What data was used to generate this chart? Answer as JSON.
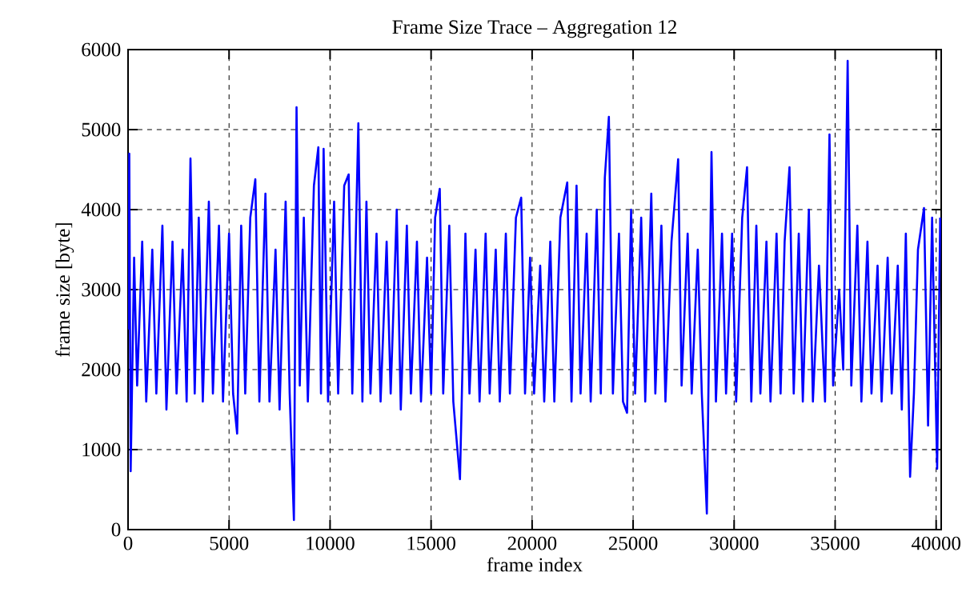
{
  "chart_data": {
    "type": "line",
    "title": "Frame Size Trace – Aggregation 12",
    "xlabel": "frame index",
    "ylabel": "frame size [byte]",
    "xlim": [
      0,
      40250
    ],
    "ylim": [
      0,
      6000
    ],
    "xticks": [
      0,
      5000,
      10000,
      15000,
      20000,
      25000,
      30000,
      35000,
      40000
    ],
    "yticks": [
      0,
      1000,
      2000,
      3000,
      4000,
      5000,
      6000
    ],
    "grid": true,
    "series": [
      {
        "color": "#0000ff",
        "x": [
          0,
          60,
          130,
          300,
          450,
          700,
          900,
          1200,
          1400,
          1700,
          1900,
          2200,
          2400,
          2700,
          2900,
          3090,
          3300,
          3500,
          3700,
          4000,
          4200,
          4500,
          4700,
          5000,
          5200,
          5400,
          5600,
          5800,
          6050,
          6300,
          6500,
          6800,
          7000,
          7300,
          7500,
          7800,
          8000,
          8210,
          8340,
          8500,
          8700,
          8900,
          9200,
          9420,
          9550,
          9680,
          9900,
          10200,
          10400,
          10700,
          10920,
          11100,
          11400,
          11600,
          11800,
          12000,
          12300,
          12500,
          12800,
          13000,
          13300,
          13500,
          13800,
          14000,
          14300,
          14500,
          14800,
          15000,
          15200,
          15430,
          15600,
          15900,
          16100,
          16430,
          16700,
          16900,
          17200,
          17400,
          17700,
          17900,
          18200,
          18400,
          18700,
          18900,
          19200,
          19460,
          19650,
          19900,
          20100,
          20400,
          20600,
          20900,
          21100,
          21400,
          21740,
          21950,
          22200,
          22400,
          22700,
          22900,
          23200,
          23400,
          23600,
          23800,
          24000,
          24300,
          24500,
          24700,
          24900,
          25100,
          25400,
          25600,
          25900,
          26100,
          26400,
          26600,
          26900,
          27230,
          27400,
          27700,
          27900,
          28200,
          28400,
          28650,
          28880,
          29100,
          29400,
          29600,
          29900,
          30100,
          30400,
          30640,
          30850,
          31100,
          31300,
          31600,
          31800,
          32100,
          32300,
          32500,
          32740,
          32950,
          33200,
          33400,
          33700,
          33900,
          34200,
          34500,
          34720,
          34900,
          35200,
          35400,
          35620,
          35800,
          36100,
          36300,
          36600,
          36800,
          37100,
          37300,
          37600,
          37800,
          38100,
          38300,
          38500,
          38710,
          38900,
          39100,
          39400,
          39600,
          39800,
          40050,
          40200
        ],
        "values": [
          2500,
          4700,
          730,
          3400,
          1800,
          3600,
          1600,
          3500,
          1700,
          3800,
          1500,
          3600,
          1700,
          3500,
          1600,
          4640,
          1700,
          3900,
          1600,
          4100,
          1700,
          3800,
          1600,
          3700,
          1700,
          1200,
          3800,
          1700,
          3900,
          4380,
          1600,
          4200,
          1600,
          3500,
          1500,
          4100,
          1700,
          120,
          5280,
          1800,
          3900,
          1600,
          4300,
          4780,
          1700,
          4760,
          1600,
          4100,
          1700,
          4300,
          4440,
          1700,
          5080,
          1600,
          4100,
          1700,
          3700,
          1600,
          3600,
          1700,
          4000,
          1500,
          3800,
          1700,
          3600,
          1600,
          3400,
          1700,
          3900,
          4260,
          1700,
          3800,
          1600,
          630,
          3700,
          1700,
          3500,
          1600,
          3700,
          1700,
          3500,
          1600,
          3700,
          1700,
          3900,
          4150,
          1700,
          3400,
          1700,
          3300,
          1600,
          3600,
          1600,
          3900,
          4340,
          1600,
          4300,
          1700,
          3700,
          1600,
          4000,
          1700,
          4400,
          5160,
          1700,
          3700,
          1600,
          1460,
          4000,
          1700,
          3900,
          1600,
          4200,
          1700,
          3800,
          1600,
          3600,
          4630,
          1800,
          3700,
          1700,
          3500,
          1700,
          200,
          4720,
          1600,
          3700,
          1700,
          3700,
          1600,
          3900,
          4530,
          1600,
          3800,
          1700,
          3600,
          1600,
          3700,
          1700,
          3600,
          4530,
          1700,
          3700,
          1600,
          4000,
          1600,
          3300,
          1600,
          4940,
          1800,
          3000,
          2000,
          5860,
          1800,
          3800,
          1600,
          3600,
          1700,
          3300,
          1600,
          3400,
          1700,
          3300,
          1500,
          3700,
          660,
          1700,
          3500,
          4020,
          1300,
          3900,
          760,
          3900
        ]
      }
    ]
  }
}
